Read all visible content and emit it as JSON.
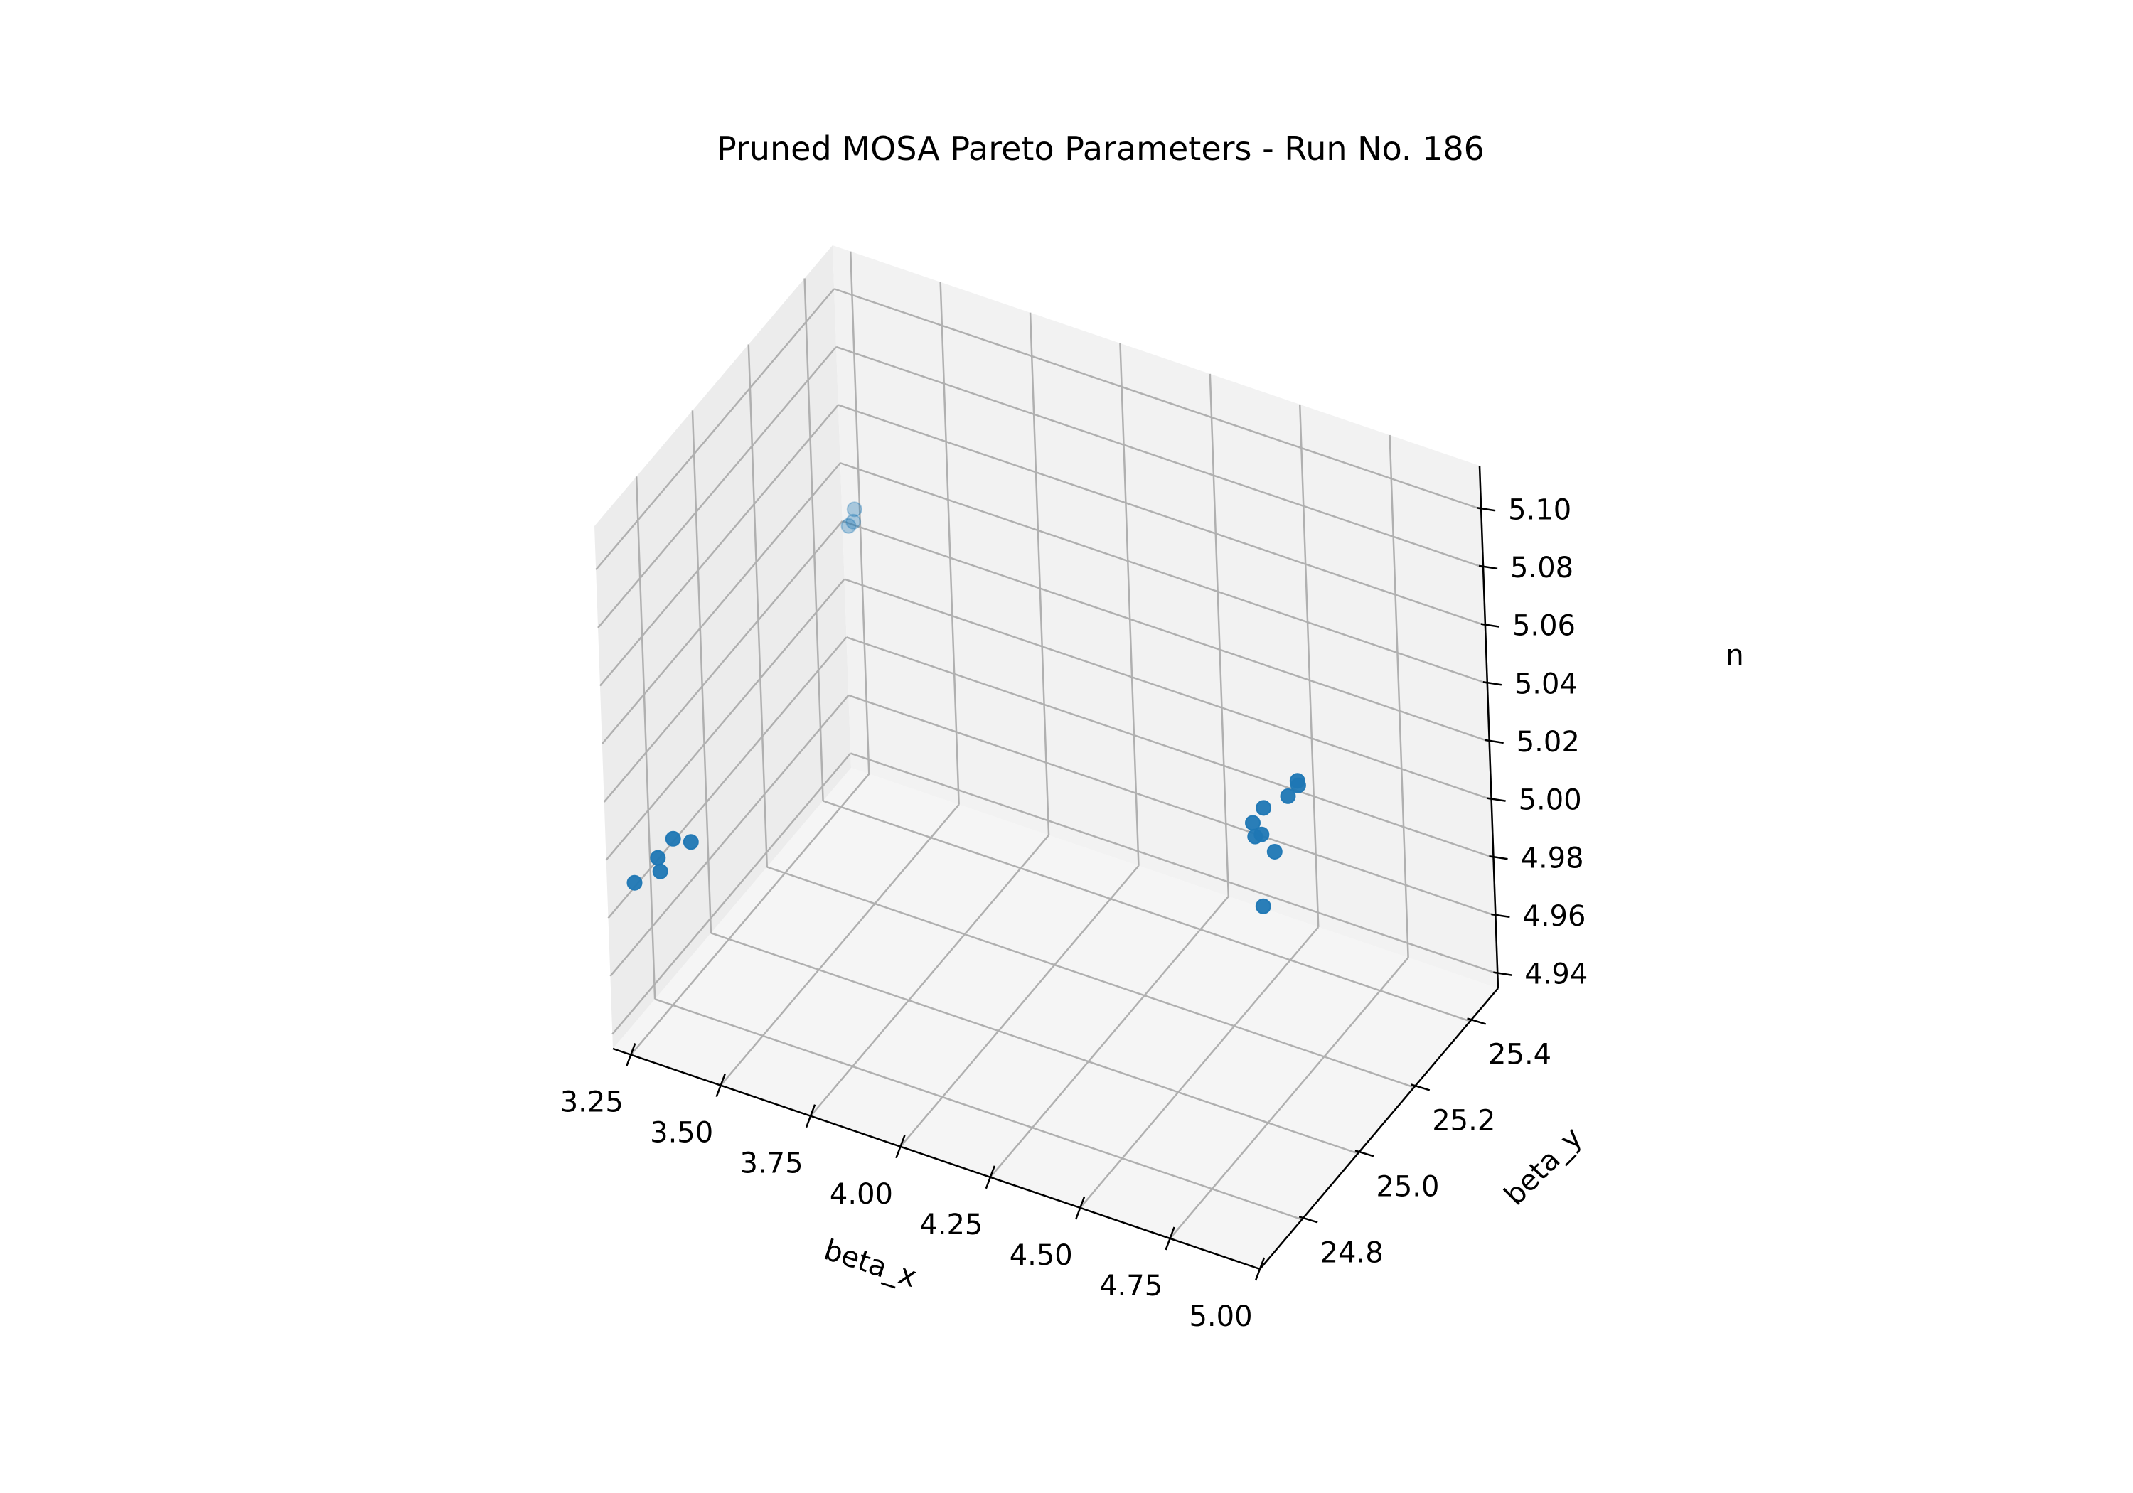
{
  "chart_data": {
    "type": "scatter",
    "title": "Pruned MOSA Pareto Parameters - Run No. 186",
    "xlabel": "beta_x",
    "ylabel": "beta_y",
    "zlabel": "n",
    "xlim": [
      3.2,
      5.0
    ],
    "ylim": [
      24.65,
      25.5
    ],
    "zlim": [
      4.935,
      5.115
    ],
    "xticks": [
      "3.25",
      "3.50",
      "3.75",
      "4.00",
      "4.25",
      "4.50",
      "4.75",
      "5.00"
    ],
    "yticks": [
      "24.8",
      "25.0",
      "25.2",
      "25.4"
    ],
    "zticks": [
      "4.94",
      "4.96",
      "4.98",
      "5.00",
      "5.02",
      "5.04",
      "5.06",
      "5.08",
      "5.10"
    ],
    "grid": true,
    "marker_color": "#1f77b4",
    "pane_colors": {
      "side_left": "#ececec",
      "side_back": "#f2f2f2",
      "floor": "#f5f5f5"
    },
    "series": [
      {
        "x": [
          3.22,
          3.28,
          3.31,
          3.3,
          3.35,
          3.25,
          3.26,
          3.28,
          4.96,
          4.89,
          4.86,
          4.9,
          4.9,
          4.98,
          4.97,
          5.0,
          4.99
        ],
        "y": [
          24.72,
          24.73,
          24.7,
          24.76,
          24.76,
          25.46,
          25.47,
          25.44,
          24.8,
          24.82,
          24.85,
          24.83,
          24.84,
          24.73,
          24.84,
          24.84,
          24.85
        ],
        "z": [
          4.985,
          4.995,
          4.995,
          4.999,
          5.0,
          5.025,
          5.03,
          5.03,
          5.06,
          5.06,
          5.06,
          5.06,
          5.068,
          5.05,
          5.075,
          5.08,
          5.08
        ]
      }
    ]
  }
}
